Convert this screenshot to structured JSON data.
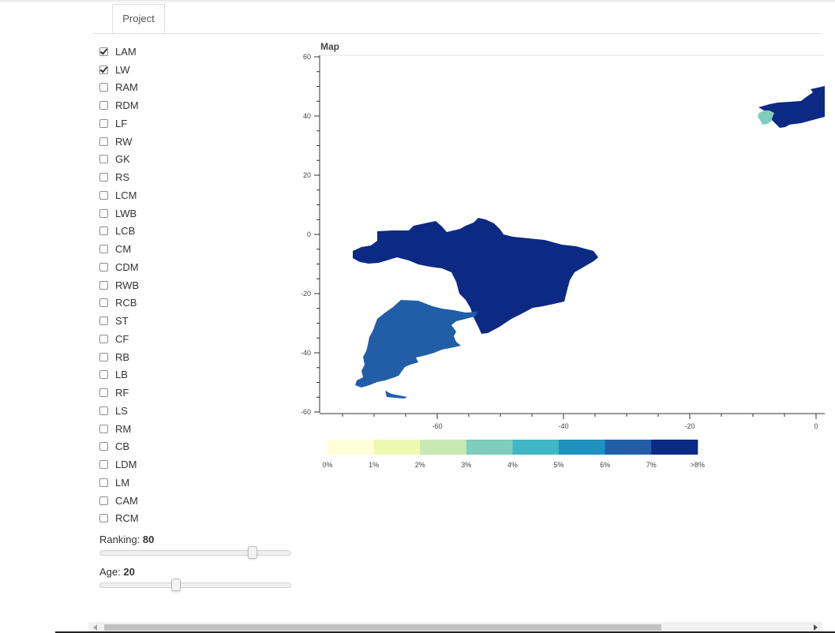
{
  "tabs": [
    {
      "label": "Project",
      "active": true
    }
  ],
  "positions": [
    {
      "label": "LAM",
      "checked": true
    },
    {
      "label": "LW",
      "checked": true
    },
    {
      "label": "RAM",
      "checked": false
    },
    {
      "label": "RDM",
      "checked": false
    },
    {
      "label": "LF",
      "checked": false
    },
    {
      "label": "RW",
      "checked": false
    },
    {
      "label": "GK",
      "checked": false
    },
    {
      "label": "RS",
      "checked": false
    },
    {
      "label": "LCM",
      "checked": false
    },
    {
      "label": "LWB",
      "checked": false
    },
    {
      "label": "LCB",
      "checked": false
    },
    {
      "label": "CM",
      "checked": false
    },
    {
      "label": "CDM",
      "checked": false
    },
    {
      "label": "RWB",
      "checked": false
    },
    {
      "label": "RCB",
      "checked": false
    },
    {
      "label": "ST",
      "checked": false
    },
    {
      "label": "CF",
      "checked": false
    },
    {
      "label": "RB",
      "checked": false
    },
    {
      "label": "LB",
      "checked": false
    },
    {
      "label": "RF",
      "checked": false
    },
    {
      "label": "LS",
      "checked": false
    },
    {
      "label": "RM",
      "checked": false
    },
    {
      "label": "CB",
      "checked": false
    },
    {
      "label": "LDM",
      "checked": false
    },
    {
      "label": "LM",
      "checked": false
    },
    {
      "label": "CAM",
      "checked": false
    },
    {
      "label": "RCM",
      "checked": false
    }
  ],
  "sliders": {
    "ranking": {
      "label": "Ranking: ",
      "value": "80",
      "fraction": 0.8
    },
    "age": {
      "label": "Age: ",
      "value": "20",
      "fraction": 0.4
    }
  },
  "map": {
    "title": "Map",
    "y_ticks": [
      "60",
      "40",
      "20",
      "0",
      "-20",
      "-40",
      "-60"
    ],
    "x_ticks": [
      "-60",
      "-40",
      "-20",
      "0"
    ],
    "regions": [
      {
        "name": "Brazil",
        "color": "#0c2a83"
      },
      {
        "name": "Argentina",
        "color": "#225ea8"
      },
      {
        "name": "Spain",
        "color": "#0c2a83"
      },
      {
        "name": "Portugal",
        "color": "#7fcdbb"
      }
    ]
  },
  "legend": {
    "labels": [
      "0%",
      "1%",
      "2%",
      "3%",
      "4%",
      "5%",
      "6%",
      "7%",
      ">8%"
    ],
    "colors": [
      "#ffffd9",
      "#edf8b1",
      "#c7e9b4",
      "#7fcdbb",
      "#41b6c4",
      "#1d91c0",
      "#225ea8",
      "#0c2a83"
    ]
  }
}
